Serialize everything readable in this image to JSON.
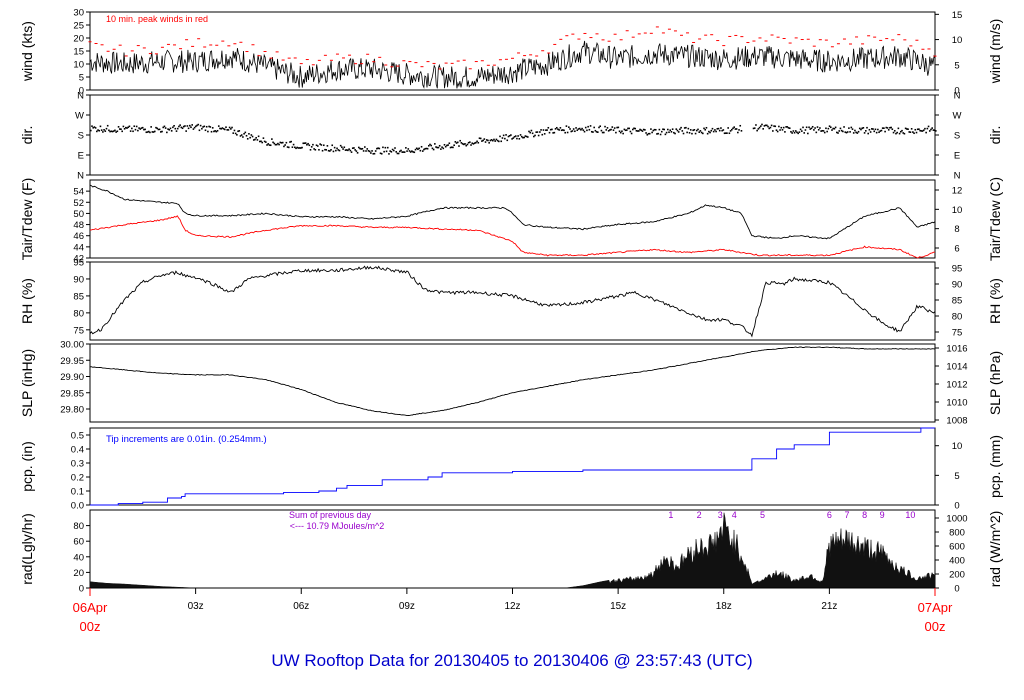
{
  "title": "UW Rooftop Data for 20130405  to  20130406 @ 23:57:43  (UTC)",
  "colors": {
    "text": "#000000",
    "red": "#ff0000",
    "blue": "#0000ff",
    "purple": "#9900cc",
    "frame": "#000000"
  },
  "time_axis": {
    "ticks": [
      "03z",
      "06z",
      "09z",
      "12z",
      "15z",
      "18z",
      "21z"
    ],
    "start_label": [
      "06Apr",
      "00z"
    ],
    "end_label": [
      "07Apr",
      "00z"
    ]
  },
  "chart_data": [
    {
      "type": "line",
      "ylabel_left": "wind (kts)",
      "ylabel_right": "wind (m/s)",
      "ylim": [
        0,
        30
      ],
      "yticks_left": [
        0,
        5,
        10,
        15,
        20,
        25,
        30
      ],
      "yticks_right": [
        "0",
        "5",
        "10",
        "15"
      ],
      "annotation": "10 min. peak winds in red",
      "series": [
        {
          "x": [
            0,
            1,
            2,
            3,
            4,
            5,
            6,
            7,
            8,
            9,
            10,
            11,
            12,
            13,
            14,
            15,
            16,
            17,
            18,
            19,
            20,
            21,
            22,
            23,
            24
          ],
          "values": [
            11,
            10,
            11,
            11,
            13,
            9,
            5,
            8,
            8,
            6,
            5,
            5,
            7,
            10,
            15,
            12,
            14,
            13,
            12,
            13,
            12,
            11,
            12,
            13,
            9
          ]
        },
        {
          "x": [
            0,
            1,
            2,
            3,
            4,
            5,
            6,
            7,
            8,
            9,
            10,
            11,
            12,
            13,
            14,
            15,
            16,
            17,
            18,
            19,
            20,
            21,
            22,
            23,
            24
          ],
          "values": [
            17,
            15,
            16,
            18,
            19,
            14,
            10,
            12,
            12,
            10,
            9,
            10,
            12,
            16,
            22,
            20,
            24,
            20,
            19,
            20,
            19,
            18,
            19,
            20,
            15
          ]
        }
      ]
    },
    {
      "type": "scatter",
      "ylabel_left": "dir.",
      "ylabel_right": "dir.",
      "ylim": [
        0,
        360
      ],
      "yticks_left": [
        "N",
        "E",
        "S",
        "W",
        "N"
      ],
      "yticks_right": [
        "N",
        "E",
        "S",
        "W",
        "N"
      ],
      "series": [
        {
          "x": [
            0,
            1,
            2,
            3,
            4,
            5,
            6,
            7,
            8,
            9,
            10,
            11,
            12,
            13,
            14,
            15,
            16,
            17,
            18,
            19,
            20,
            21,
            22,
            23,
            24
          ],
          "values": [
            210,
            205,
            205,
            215,
            200,
            150,
            130,
            120,
            110,
            110,
            130,
            150,
            170,
            200,
            210,
            200,
            195,
            200,
            200,
            215,
            200,
            205,
            200,
            200,
            205
          ]
        }
      ]
    },
    {
      "type": "line",
      "ylabel_left": "Tair/Tdew (F)",
      "ylabel_right": "Tair/Tdew (C)",
      "ylim": [
        42,
        56
      ],
      "yticks_left": [
        42,
        44,
        46,
        48,
        50,
        52,
        54
      ],
      "yticks_right": [
        "6",
        "8",
        "10",
        "12"
      ],
      "series": [
        {
          "x": [
            0,
            0.5,
            1,
            2,
            2.5,
            2.7,
            3,
            4,
            5,
            6,
            7,
            8,
            9,
            10,
            11,
            11.8,
            12,
            12.3,
            13,
            14,
            15,
            16,
            17,
            17.5,
            18,
            18.5,
            18.8,
            19.5,
            20,
            21,
            22,
            23,
            23.5,
            24
          ],
          "values": [
            55,
            54,
            52.5,
            52,
            51.8,
            50,
            49.6,
            49.6,
            50,
            49.4,
            49.4,
            49,
            49.5,
            51,
            51,
            51,
            50,
            48,
            47.5,
            47.2,
            48,
            48.5,
            50,
            51.5,
            51,
            50,
            46,
            45.5,
            46,
            45.5,
            49.5,
            51,
            47.5,
            48.5
          ]
        },
        {
          "x": [
            0,
            1,
            2,
            2.5,
            2.7,
            3,
            4,
            5,
            6,
            7,
            8,
            9,
            10,
            11,
            11.5,
            12,
            12.3,
            13,
            14,
            15,
            16,
            17,
            18,
            19,
            20,
            21,
            22,
            23,
            23.5,
            24
          ],
          "values": [
            47,
            48,
            48.8,
            49.5,
            47,
            46,
            45.8,
            47,
            47.8,
            47.8,
            47.5,
            47.5,
            47.2,
            47,
            46,
            45,
            43,
            42.5,
            42.5,
            43,
            43.5,
            43,
            43.5,
            42.5,
            42.5,
            42.5,
            44,
            43.5,
            42,
            43
          ]
        }
      ]
    },
    {
      "type": "line",
      "ylabel_left": "RH (%)",
      "ylabel_right": "RH (%)",
      "ylim": [
        72,
        95
      ],
      "yticks_left": [
        75,
        80,
        85,
        90,
        95
      ],
      "yticks_right": [
        "75",
        "80",
        "85",
        "90",
        "95"
      ],
      "series": [
        {
          "x": [
            0,
            0.3,
            1,
            1.5,
            2,
            2.5,
            2.7,
            3,
            3.5,
            4,
            4.5,
            5,
            6,
            7,
            8,
            9,
            9.5,
            10,
            11,
            12,
            13,
            14,
            15,
            15.5,
            16,
            17,
            17.5,
            18,
            18.5,
            18.8,
            19.2,
            19.7,
            20,
            21,
            22,
            22.5,
            23,
            23.5,
            24
          ],
          "values": [
            74,
            75,
            84,
            89,
            91,
            92,
            91,
            90.5,
            88.5,
            86,
            90,
            91,
            92.5,
            92.5,
            93.5,
            92,
            87,
            86,
            86,
            85,
            82,
            83,
            85,
            86,
            84,
            80,
            78,
            78,
            76,
            73.5,
            89,
            88.5,
            90,
            89,
            81,
            77,
            74.5,
            82,
            80
          ]
        }
      ]
    },
    {
      "type": "line",
      "ylabel_left": "SLP (inHg)",
      "ylabel_right": "SLP (hPa)",
      "ylim": [
        29.76,
        30.0
      ],
      "yticks_left": [
        "29.80",
        "29.85",
        "29.90",
        "29.95",
        "30.00"
      ],
      "yticks_right": [
        "1008",
        "1010",
        "1012",
        "1014",
        "1016"
      ],
      "series": [
        {
          "x": [
            0,
            1,
            2,
            3,
            4,
            5,
            6,
            7,
            8,
            9,
            10,
            11,
            12,
            13,
            14,
            15,
            16,
            17,
            18,
            19,
            20,
            21,
            22,
            23,
            24
          ],
          "values": [
            29.93,
            29.92,
            29.91,
            29.905,
            29.905,
            29.89,
            29.86,
            29.82,
            29.795,
            29.78,
            29.795,
            29.82,
            29.85,
            29.87,
            29.89,
            29.905,
            29.92,
            29.94,
            29.96,
            29.98,
            29.99,
            29.99,
            29.985,
            29.985,
            29.985
          ]
        }
      ]
    },
    {
      "type": "line",
      "ylabel_left": "pcp. (in)",
      "ylabel_right": "pcp. (mm)",
      "ylim": [
        0,
        0.55
      ],
      "yticks_left": [
        "0.0",
        "0.1",
        "0.2",
        "0.3",
        "0.4",
        "0.5"
      ],
      "yticks_right": [
        "0",
        "5",
        "10"
      ],
      "annotation": "Tip increments are 0.01in. (0.254mm.)",
      "series": [
        {
          "x": [
            0,
            0.8,
            1.5,
            2.2,
            2.6,
            2.7,
            3.5,
            4.5,
            5.5,
            6.5,
            7,
            7.3,
            8.3,
            9.6,
            10,
            12,
            14,
            16,
            18,
            18.8,
            19.5,
            20,
            21,
            22,
            23,
            23.6,
            24
          ],
          "values": [
            0,
            0.01,
            0.02,
            0.05,
            0.06,
            0.08,
            0.08,
            0.08,
            0.09,
            0.1,
            0.12,
            0.14,
            0.18,
            0.2,
            0.23,
            0.24,
            0.25,
            0.25,
            0.25,
            0.33,
            0.4,
            0.43,
            0.52,
            0.52,
            0.52,
            0.55,
            0.55
          ]
        }
      ]
    },
    {
      "type": "area",
      "ylabel_left": "rad(Lgly/hr)",
      "ylabel_right": "rad (W/m^2)",
      "ylim": [
        0,
        100
      ],
      "yticks_left": [
        0,
        20,
        40,
        60,
        80
      ],
      "yticks_right": [
        "0",
        "200",
        "400",
        "600",
        "800",
        "1000"
      ],
      "annotation_lines": [
        "Sum of previous day",
        "<--- 10.79 MJoules/m^2"
      ],
      "hour_markers": [
        "1",
        "2",
        "3",
        "4",
        "5",
        "6",
        "7",
        "8",
        "9",
        "10"
      ],
      "series": [
        {
          "x": [
            0,
            0.5,
            1,
            2,
            2.5,
            3,
            13.5,
            14,
            14.5,
            15,
            15.5,
            16,
            16.3,
            16.7,
            17,
            17.3,
            17.7,
            18,
            18.3,
            18.6,
            18.8,
            19,
            19.5,
            20,
            20.5,
            20.8,
            21,
            21.5,
            22,
            22.5,
            23,
            23.5,
            23.8,
            24
          ],
          "values": [
            8,
            6,
            5,
            2,
            1,
            0,
            0,
            3,
            8,
            12,
            15,
            22,
            48,
            35,
            55,
            65,
            70,
            95,
            75,
            40,
            5,
            10,
            25,
            12,
            20,
            8,
            70,
            75,
            65,
            55,
            30,
            15,
            20,
            18
          ]
        }
      ]
    }
  ]
}
